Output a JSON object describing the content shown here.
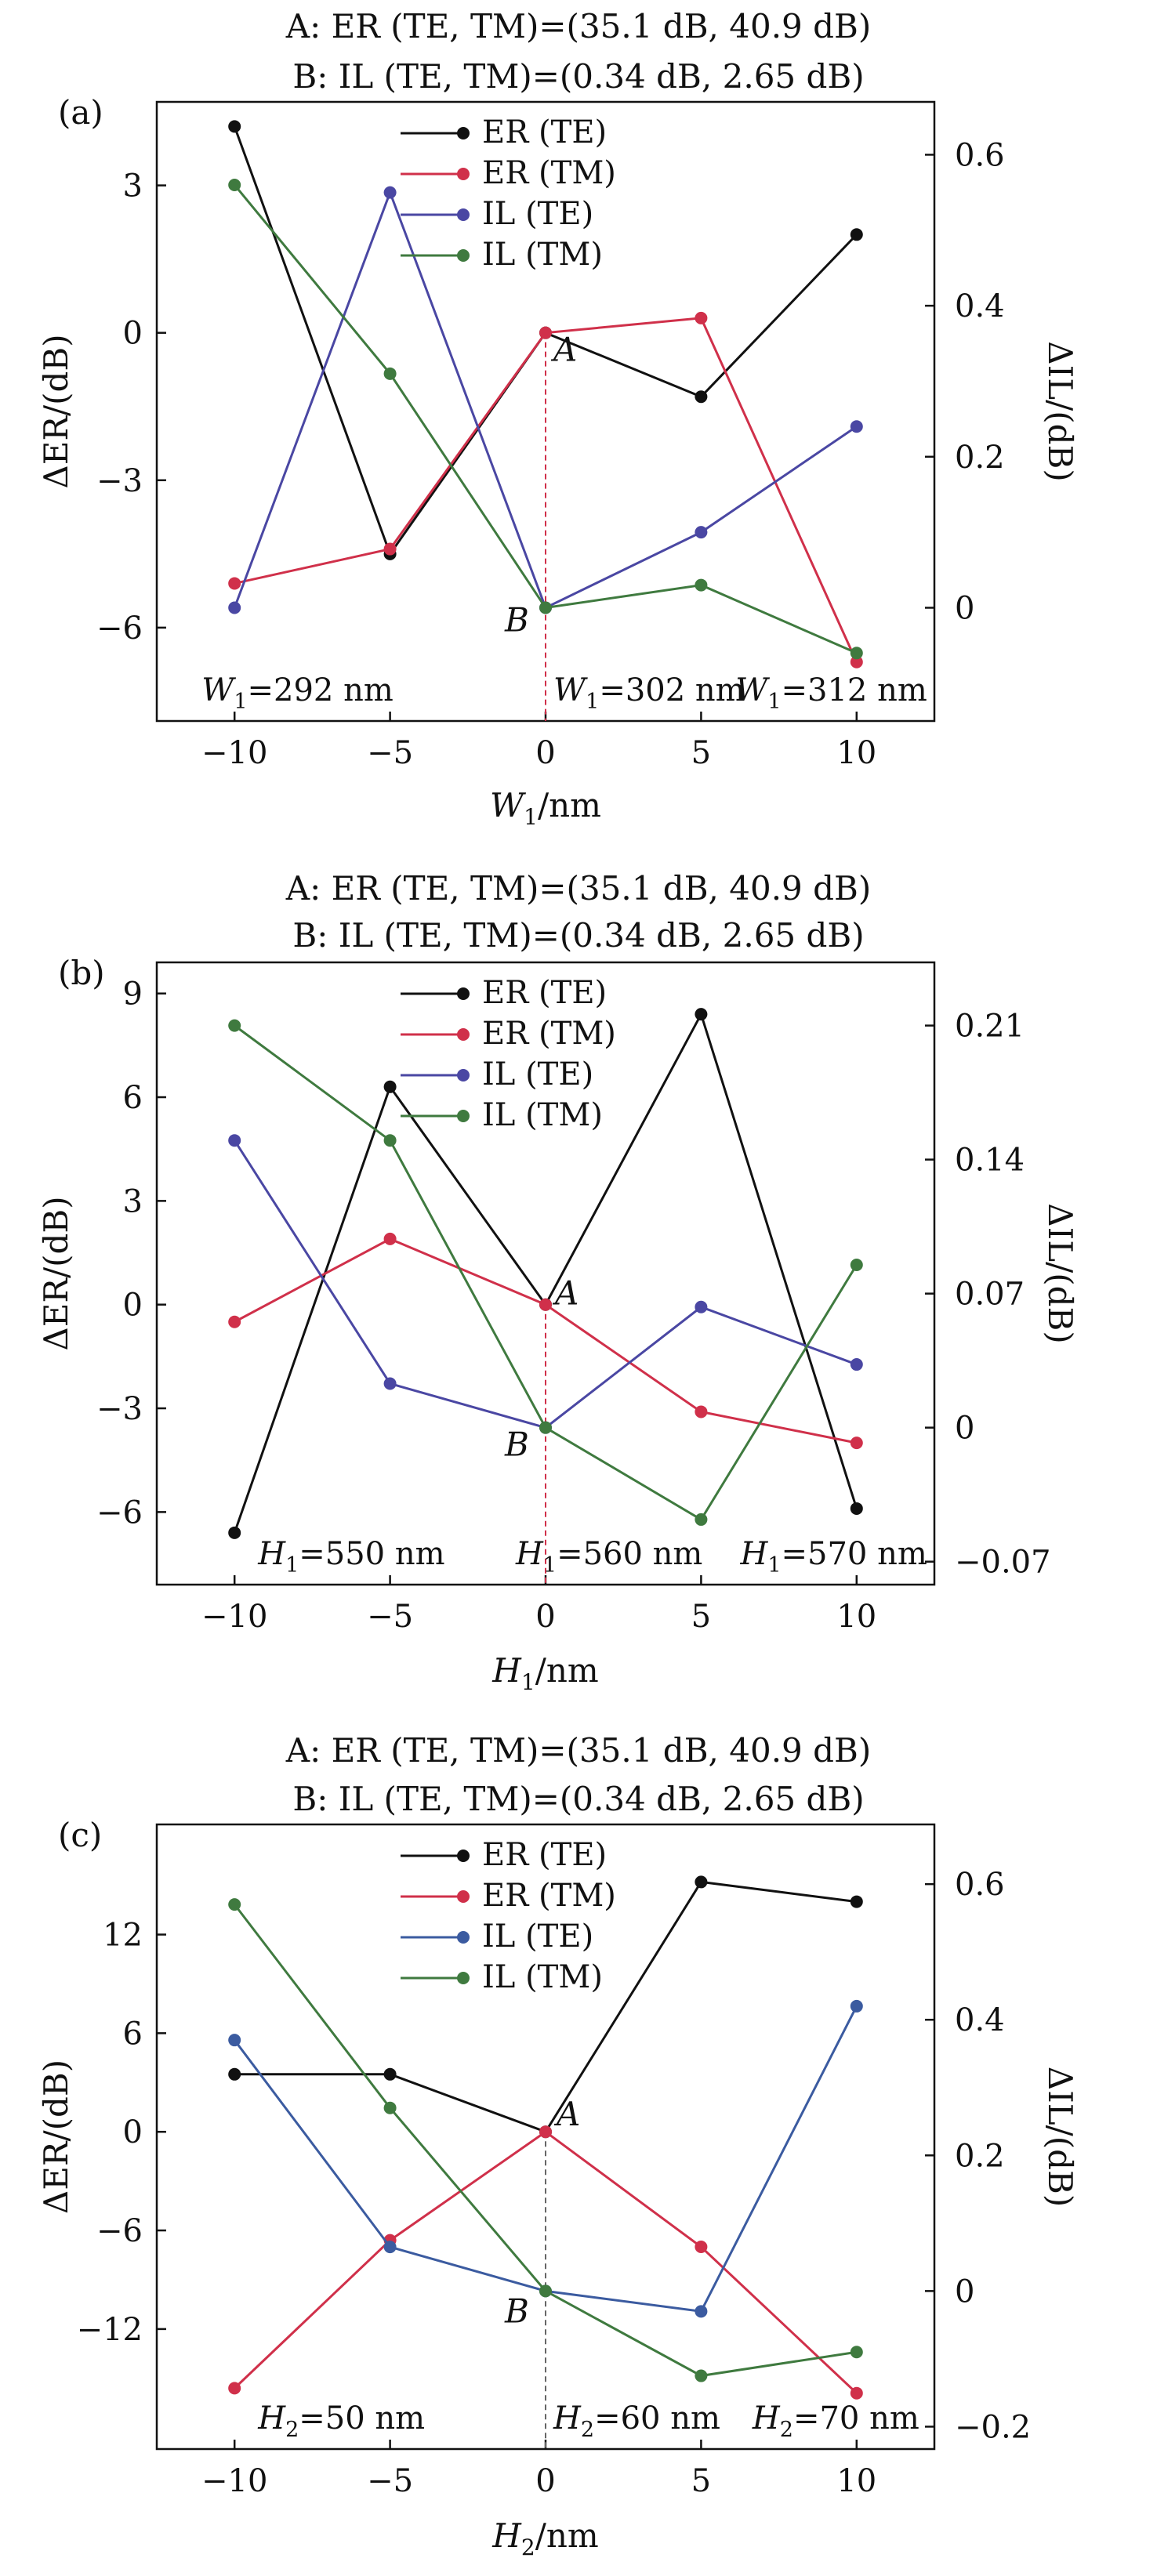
{
  "chart_data": [
    {
      "type": "line",
      "panel_label": "(a)",
      "title_lines": [
        "A: ER (TE, TM)=(35.1 dB, 40.9 dB)",
        "B: IL (TE, TM)=(0.34 dB, 2.65 dB)"
      ],
      "xlabel": {
        "main": "W",
        "sub": "1",
        "tail": "/nm"
      },
      "ylabel_left": "ΔER/(dB)",
      "ylabel_right": "ΔIL/(dB)",
      "x": [
        -10,
        -5,
        0,
        5,
        10
      ],
      "xticks": [
        "−10",
        "−5",
        "0",
        "5",
        "10"
      ],
      "xlim": [
        -12.5,
        12.5
      ],
      "left_ticks": [
        {
          "v": 3,
          "label": "3"
        },
        {
          "v": 0,
          "label": "0"
        },
        {
          "v": -3,
          "label": "−3"
        },
        {
          "v": -6,
          "label": "−6"
        }
      ],
      "right_ticks": [
        {
          "v": 0.6,
          "label": "0.6"
        },
        {
          "v": 0.4,
          "label": "0.4"
        },
        {
          "v": 0.2,
          "label": "0.2"
        },
        {
          "v": 0,
          "label": "0"
        }
      ],
      "ylim_left": [
        -7.9,
        4.7
      ],
      "ylim_right": [
        -0.15,
        0.67
      ],
      "series": [
        {
          "name": "ER (TE)",
          "axis": "left",
          "color": "#111111",
          "values": [
            4.2,
            -4.5,
            0,
            -1.3,
            2.0
          ]
        },
        {
          "name": "ER (TM)",
          "axis": "left",
          "color": "#d0304a",
          "values": [
            -5.1,
            -4.4,
            0,
            0.3,
            -6.7
          ]
        },
        {
          "name": "IL (TE)",
          "axis": "right",
          "color": "#4a47a3",
          "values": [
            0,
            0.55,
            0,
            0.1,
            0.24
          ]
        },
        {
          "name": "IL (TM)",
          "axis": "right",
          "color": "#3f7a3f",
          "values": [
            0.56,
            0.31,
            0,
            0.03,
            -0.06
          ]
        }
      ],
      "annotations": [
        {
          "text": "A",
          "italic": true,
          "x": 0,
          "axis": "left",
          "y": 0,
          "dx": 10,
          "dy": 36
        },
        {
          "text": "B",
          "italic": true,
          "x": 0,
          "axis": "right",
          "y": 0,
          "dx": -52,
          "dy": 30
        }
      ],
      "point_labels": [
        {
          "pre": "W",
          "sub": "1",
          "post": "=292 nm",
          "x": -10,
          "anchor": "start",
          "dx": -42
        },
        {
          "pre": "W",
          "sub": "1",
          "post": "=302 nm",
          "x": 0,
          "anchor": "start",
          "dx": 10
        },
        {
          "pre": "W",
          "sub": "1",
          "post": "=312 nm",
          "x": 10,
          "anchor": "end",
          "dx": 90
        }
      ],
      "guide_line": {
        "x": 0,
        "color": "#d0304a",
        "style": "dashed"
      },
      "legend": "top-center"
    },
    {
      "type": "line",
      "panel_label": "(b)",
      "title_lines": [
        "A: ER (TE, TM)=(35.1 dB, 40.9 dB)",
        "B: IL (TE, TM)=(0.34 dB, 2.65 dB)"
      ],
      "xlabel": {
        "main": "H",
        "sub": "1",
        "tail": "/nm"
      },
      "ylabel_left": "ΔER/(dB)",
      "ylabel_right": "ΔIL/(dB)",
      "x": [
        -10,
        -5,
        0,
        5,
        10
      ],
      "xticks": [
        "−10",
        "−5",
        "0",
        "5",
        "10"
      ],
      "xlim": [
        -12.5,
        12.5
      ],
      "left_ticks": [
        {
          "v": 9,
          "label": "9"
        },
        {
          "v": 6,
          "label": "6"
        },
        {
          "v": 3,
          "label": "3"
        },
        {
          "v": 0,
          "label": "0"
        },
        {
          "v": -3,
          "label": "−3"
        },
        {
          "v": -6,
          "label": "−6"
        }
      ],
      "right_ticks": [
        {
          "v": 0.21,
          "label": "0.21"
        },
        {
          "v": 0.14,
          "label": "0.14"
        },
        {
          "v": 0.07,
          "label": "0.07"
        },
        {
          "v": 0,
          "label": "0"
        },
        {
          "v": -0.07,
          "label": "−0.07"
        }
      ],
      "ylim_left": [
        -8.1,
        9.9
      ],
      "ylim_right": [
        -0.082,
        0.243
      ],
      "series": [
        {
          "name": "ER (TE)",
          "axis": "left",
          "color": "#111111",
          "values": [
            -6.6,
            6.3,
            0,
            8.4,
            -5.9
          ]
        },
        {
          "name": "ER (TM)",
          "axis": "left",
          "color": "#d0304a",
          "values": [
            -0.5,
            1.9,
            0,
            -3.1,
            -4.0
          ]
        },
        {
          "name": "IL (TE)",
          "axis": "right",
          "color": "#4a47a3",
          "values": [
            0.15,
            0.023,
            0,
            0.063,
            0.033
          ]
        },
        {
          "name": "IL (TM)",
          "axis": "right",
          "color": "#3f7a3f",
          "values": [
            0.21,
            0.15,
            0,
            -0.048,
            0.085
          ]
        }
      ],
      "annotations": [
        {
          "text": "A",
          "italic": true,
          "x": 0,
          "axis": "left",
          "y": 0,
          "dx": 12,
          "dy": 0
        },
        {
          "text": "B",
          "italic": true,
          "x": 0,
          "axis": "right",
          "y": 0,
          "dx": -52,
          "dy": 36
        }
      ],
      "point_labels": [
        {
          "pre": "H",
          "sub": "1",
          "post": "=550 nm",
          "x": -10,
          "anchor": "start",
          "dx": 30
        },
        {
          "pre": "H",
          "sub": "1",
          "post": "=560 nm",
          "x": 0,
          "anchor": "start",
          "dx": -38
        },
        {
          "pre": "H",
          "sub": "1",
          "post": "=570 nm",
          "x": 10,
          "anchor": "end",
          "dx": 90
        }
      ],
      "guide_line": {
        "x": 0,
        "color": "#d0304a",
        "style": "dashed"
      },
      "legend": "top-center"
    },
    {
      "type": "line",
      "panel_label": "(c)",
      "title_lines": [
        "A: ER (TE, TM)=(35.1 dB, 40.9 dB)",
        "B: IL (TE, TM)=(0.34 dB, 2.65 dB)"
      ],
      "xlabel": {
        "main": "H",
        "sub": "2",
        "tail": "/nm"
      },
      "ylabel_left": "ΔER/(dB)",
      "ylabel_right": "ΔIL/(dB)",
      "x": [
        -10,
        -5,
        0,
        5,
        10
      ],
      "xticks": [
        "−10",
        "−5",
        "0",
        "5",
        "10"
      ],
      "xlim": [
        -12.5,
        12.5
      ],
      "left_ticks": [
        {
          "v": 12,
          "label": "12"
        },
        {
          "v": 6,
          "label": "6"
        },
        {
          "v": 0,
          "label": "0"
        },
        {
          "v": -6,
          "label": "−6"
        },
        {
          "v": -12,
          "label": "−12"
        }
      ],
      "right_ticks": [
        {
          "v": 0.6,
          "label": "0.6"
        },
        {
          "v": 0.4,
          "label": "0.4"
        },
        {
          "v": 0.2,
          "label": "0.2"
        },
        {
          "v": 0,
          "label": "0"
        },
        {
          "v": -0.2,
          "label": "−0.2"
        }
      ],
      "ylim_left": [
        -19.3,
        18.7
      ],
      "ylim_right": [
        -0.233,
        0.688
      ],
      "series": [
        {
          "name": "ER (TE)",
          "axis": "left",
          "color": "#111111",
          "values": [
            3.5,
            3.5,
            0,
            15.2,
            14.0
          ]
        },
        {
          "name": "ER (TM)",
          "axis": "left",
          "color": "#d0304a",
          "values": [
            -15.6,
            -6.6,
            0,
            -7.0,
            -15.9
          ]
        },
        {
          "name": "IL (TE)",
          "axis": "right",
          "color": "#3b5ba0",
          "values": [
            0.37,
            0.065,
            0,
            -0.03,
            0.42
          ]
        },
        {
          "name": "IL (TM)",
          "axis": "right",
          "color": "#3f7a3f",
          "values": [
            0.57,
            0.27,
            0,
            -0.125,
            -0.09
          ]
        }
      ],
      "annotations": [
        {
          "text": "A",
          "italic": true,
          "x": 0,
          "axis": "left",
          "y": 0,
          "dx": 14,
          "dy": -8
        },
        {
          "text": "B",
          "italic": true,
          "x": 0,
          "axis": "right",
          "y": 0,
          "dx": -52,
          "dy": 40
        }
      ],
      "point_labels": [
        {
          "pre": "H",
          "sub": "2",
          "post": "=50 nm",
          "x": -10,
          "anchor": "start",
          "dx": 30
        },
        {
          "pre": "H",
          "sub": "2",
          "post": "=60 nm",
          "x": 0,
          "anchor": "start",
          "dx": 10
        },
        {
          "pre": "H",
          "sub": "2",
          "post": "=70 nm",
          "x": 10,
          "anchor": "end",
          "dx": 80
        }
      ],
      "guide_line": {
        "x": 0,
        "color": "#666666",
        "style": "dashed"
      },
      "legend": "top-center"
    }
  ]
}
